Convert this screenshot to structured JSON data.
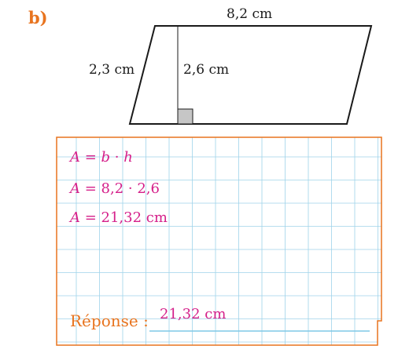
{
  "exercise": {
    "label": "b)"
  },
  "figure": {
    "base_label": "8,2 cm",
    "side_label": "2,3 cm",
    "height_label": "2,6 cm"
  },
  "work": {
    "line1": {
      "var": "A",
      "rhs_prefix": "= ",
      "b": "b",
      "dot": " · ",
      "h": "h"
    },
    "line2": {
      "var": "A",
      "rhs": " = 8,2 · 2,6"
    },
    "line3": {
      "var": "A",
      "rhs": " = 21,32 cm"
    }
  },
  "answer": {
    "label": "Réponse :",
    "value": "21,32 cm"
  },
  "colors": {
    "accent_orange": "#e8741f",
    "handwriting_magenta": "#d5208a",
    "grid_blue": "#9fd3ea"
  }
}
